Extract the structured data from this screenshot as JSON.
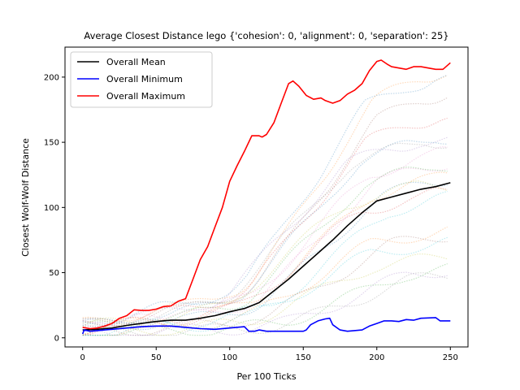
{
  "chart_data": {
    "type": "line",
    "title": "Average Closest Distance lego {'cohesion': 0, 'alignment': 0, 'separation': 25}",
    "xlabel": "Per 100 Ticks",
    "ylabel": "Closest Wolf-Wolf Distance",
    "xlim": [
      -12,
      262
    ],
    "ylim": [
      -7,
      223
    ],
    "xticks": [
      0,
      50,
      100,
      150,
      200,
      250
    ],
    "yticks": [
      0,
      50,
      100,
      150,
      200
    ],
    "grid": false,
    "legend": "top-left",
    "series": [
      {
        "name": "Overall Mean",
        "color": "#000000",
        "points": [
          [
            0,
            6
          ],
          [
            10,
            6.5
          ],
          [
            20,
            7.5
          ],
          [
            30,
            9.5
          ],
          [
            40,
            11
          ],
          [
            50,
            12.5
          ],
          [
            60,
            13.5
          ],
          [
            70,
            13.5
          ],
          [
            80,
            15
          ],
          [
            90,
            17
          ],
          [
            100,
            20
          ],
          [
            110,
            22.5
          ],
          [
            120,
            27
          ],
          [
            130,
            36
          ],
          [
            140,
            45
          ],
          [
            150,
            55
          ],
          [
            160,
            65
          ],
          [
            170,
            75
          ],
          [
            180,
            86
          ],
          [
            190,
            96
          ],
          [
            200,
            105
          ],
          [
            210,
            108
          ],
          [
            220,
            111
          ],
          [
            230,
            114
          ],
          [
            240,
            116
          ],
          [
            250,
            119
          ]
        ]
      },
      {
        "name": "Overall Minimum",
        "color": "#0000ff",
        "points": [
          [
            0,
            3
          ],
          [
            1,
            6
          ],
          [
            5,
            5
          ],
          [
            10,
            5.5
          ],
          [
            15,
            6
          ],
          [
            20,
            6.5
          ],
          [
            30,
            7.5
          ],
          [
            40,
            8.5
          ],
          [
            50,
            9
          ],
          [
            60,
            9
          ],
          [
            70,
            8
          ],
          [
            80,
            7
          ],
          [
            90,
            6.5
          ],
          [
            100,
            7.5
          ],
          [
            110,
            8.5
          ],
          [
            113,
            5
          ],
          [
            117,
            5
          ],
          [
            120,
            6
          ],
          [
            125,
            5
          ],
          [
            130,
            5
          ],
          [
            140,
            5
          ],
          [
            150,
            5
          ],
          [
            152,
            6
          ],
          [
            155,
            10
          ],
          [
            160,
            13
          ],
          [
            165,
            14.5
          ],
          [
            168,
            15
          ],
          [
            170,
            10
          ],
          [
            175,
            6
          ],
          [
            180,
            5
          ],
          [
            190,
            6
          ],
          [
            195,
            9
          ],
          [
            200,
            11
          ],
          [
            205,
            13
          ],
          [
            210,
            13
          ],
          [
            215,
            12.5
          ],
          [
            220,
            14
          ],
          [
            225,
            13.5
          ],
          [
            230,
            15
          ],
          [
            240,
            15.5
          ],
          [
            243,
            13
          ],
          [
            250,
            13
          ]
        ]
      },
      {
        "name": "Overall Maximum",
        "color": "#ff0000",
        "points": [
          [
            0,
            8
          ],
          [
            5,
            7
          ],
          [
            10,
            7.5
          ],
          [
            15,
            9
          ],
          [
            20,
            11
          ],
          [
            25,
            15
          ],
          [
            30,
            17
          ],
          [
            35,
            21.5
          ],
          [
            40,
            21
          ],
          [
            45,
            21
          ],
          [
            50,
            22
          ],
          [
            55,
            24
          ],
          [
            60,
            24.5
          ],
          [
            65,
            28
          ],
          [
            70,
            30
          ],
          [
            75,
            45
          ],
          [
            80,
            60
          ],
          [
            85,
            70
          ],
          [
            90,
            85
          ],
          [
            95,
            100
          ],
          [
            100,
            120
          ],
          [
            105,
            132
          ],
          [
            110,
            143
          ],
          [
            115,
            155
          ],
          [
            120,
            155
          ],
          [
            122,
            154
          ],
          [
            125,
            156
          ],
          [
            130,
            165
          ],
          [
            135,
            180
          ],
          [
            140,
            195
          ],
          [
            143,
            197
          ],
          [
            147,
            193
          ],
          [
            152,
            186
          ],
          [
            157,
            183
          ],
          [
            162,
            184
          ],
          [
            165,
            182
          ],
          [
            170,
            180
          ],
          [
            175,
            182
          ],
          [
            180,
            187
          ],
          [
            185,
            190
          ],
          [
            190,
            195
          ],
          [
            195,
            205
          ],
          [
            200,
            212
          ],
          [
            203,
            213
          ],
          [
            207,
            210
          ],
          [
            210,
            208
          ],
          [
            215,
            207
          ],
          [
            220,
            206
          ],
          [
            225,
            208
          ],
          [
            230,
            208
          ],
          [
            235,
            207
          ],
          [
            240,
            206
          ],
          [
            245,
            206
          ],
          [
            250,
            211
          ]
        ]
      }
    ]
  }
}
